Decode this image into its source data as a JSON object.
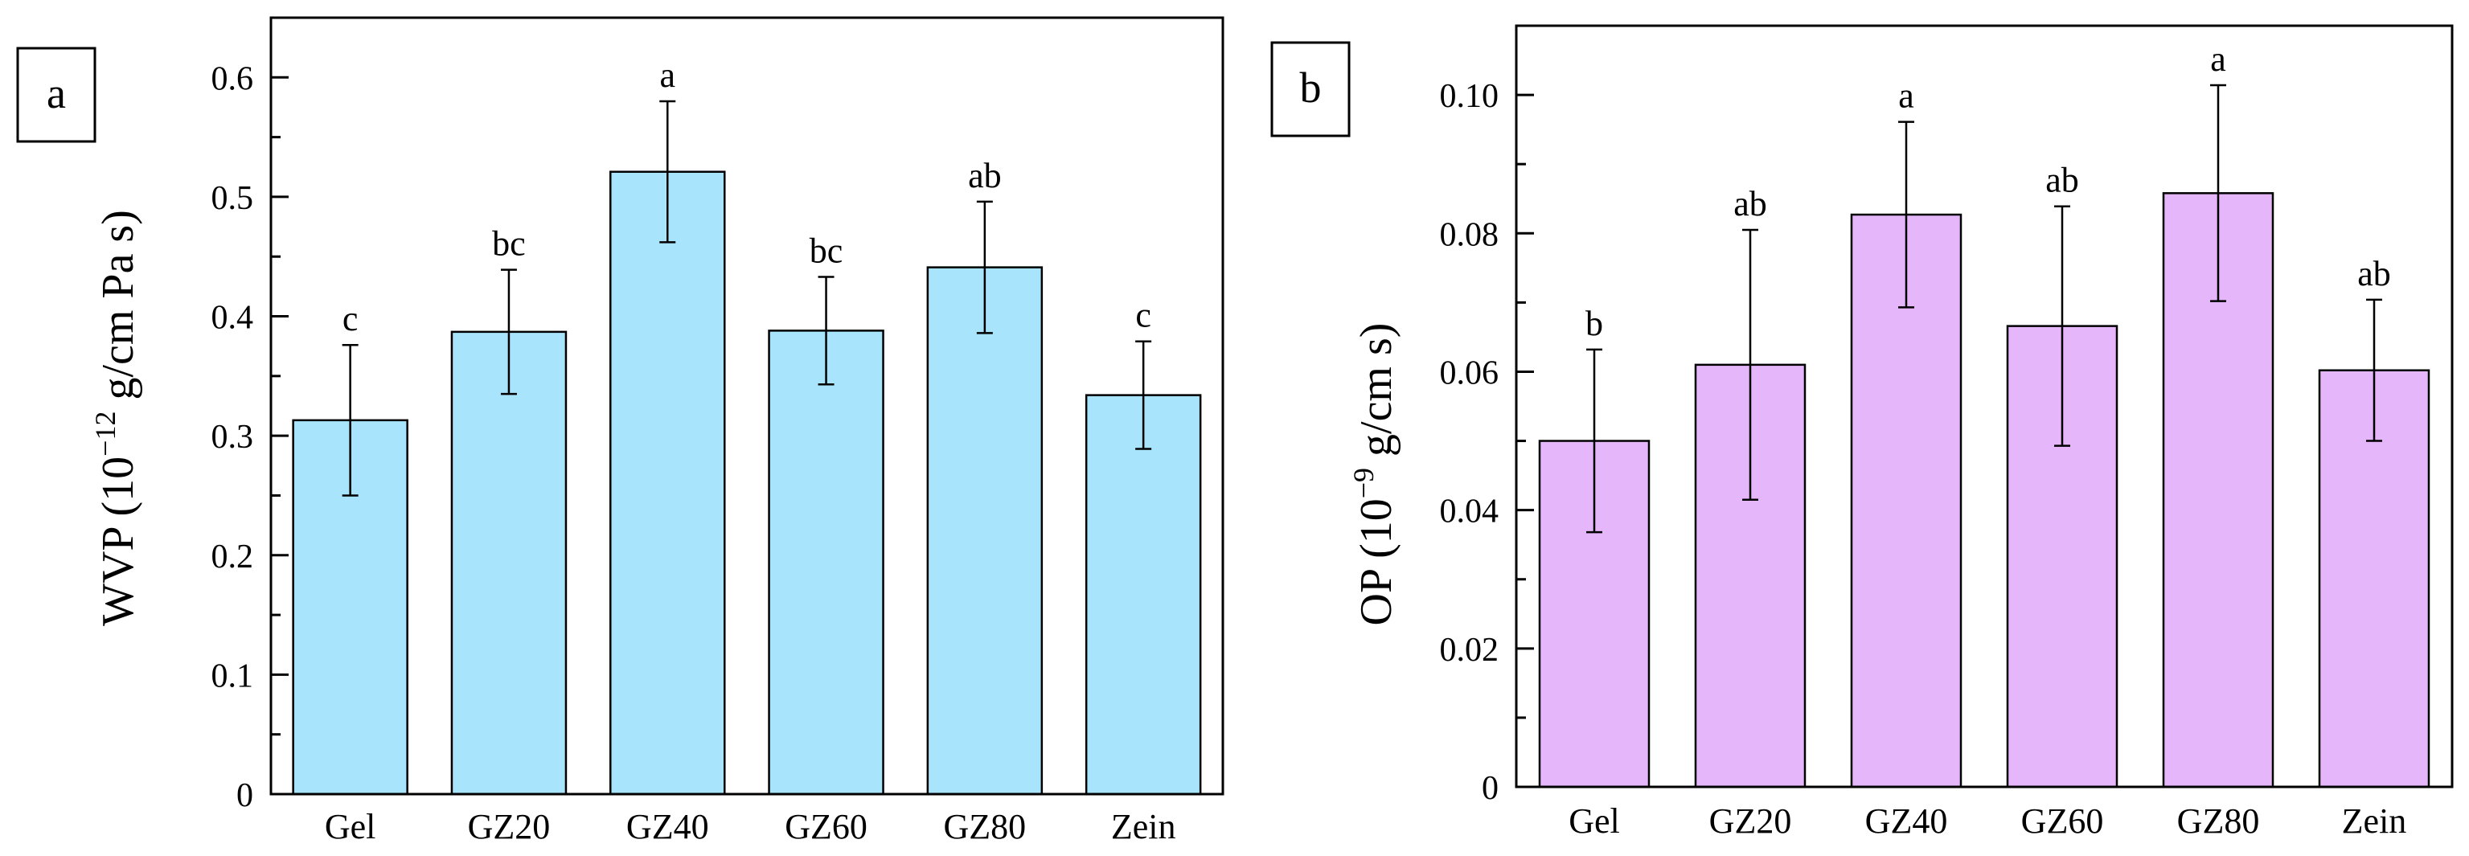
{
  "panels": [
    {
      "panel_label": "a",
      "ylabel_prefix": "WVP (10",
      "ylabel_exp": "−12",
      "ylabel_suffix": " g/cm Pa s)",
      "bar_color": "#a8e4fb",
      "ytick_labels": [
        "0",
        "0.1",
        "0.2",
        "0.3",
        "0.4",
        "0.5",
        "0.6"
      ]
    },
    {
      "panel_label": "b",
      "ylabel_prefix": "OP (10",
      "ylabel_exp": "−9",
      "ylabel_suffix": " g/cm s)",
      "bar_color": "#e6b6fb",
      "ytick_labels": [
        "0",
        "0.02",
        "0.04",
        "0.06",
        "0.08",
        "0.10"
      ]
    }
  ],
  "chart_data": [
    {
      "type": "bar",
      "title": "",
      "xlabel": "",
      "ylabel": "WVP (10−12 g/cm Pa s)",
      "categories": [
        "Gel",
        "GZ20",
        "GZ40",
        "GZ60",
        "GZ80",
        "Zein"
      ],
      "values": [
        0.313,
        0.387,
        0.521,
        0.388,
        0.441,
        0.334
      ],
      "error": [
        0.063,
        0.052,
        0.059,
        0.045,
        0.055,
        0.045
      ],
      "significance_letters": [
        "c",
        "bc",
        "a",
        "bc",
        "ab",
        "c"
      ],
      "ylim": [
        0,
        0.65
      ],
      "yticks": [
        0,
        0.1,
        0.2,
        0.3,
        0.4,
        0.5,
        0.6
      ],
      "grid": false,
      "legend": "none"
    },
    {
      "type": "bar",
      "title": "",
      "xlabel": "",
      "ylabel": "OP (10−9 g/cm s)",
      "categories": [
        "Gel",
        "GZ20",
        "GZ40",
        "GZ60",
        "GZ80",
        "Zein"
      ],
      "values": [
        0.05,
        0.061,
        0.0827,
        0.0666,
        0.0858,
        0.0602
      ],
      "error": [
        0.0132,
        0.0195,
        0.0134,
        0.0173,
        0.0156,
        0.0102
      ],
      "significance_letters": [
        "b",
        "ab",
        "a",
        "ab",
        "a",
        "ab"
      ],
      "ylim": [
        0,
        0.11
      ],
      "yticks": [
        0,
        0.02,
        0.04,
        0.06,
        0.08,
        0.1
      ],
      "grid": false,
      "legend": "none"
    }
  ]
}
